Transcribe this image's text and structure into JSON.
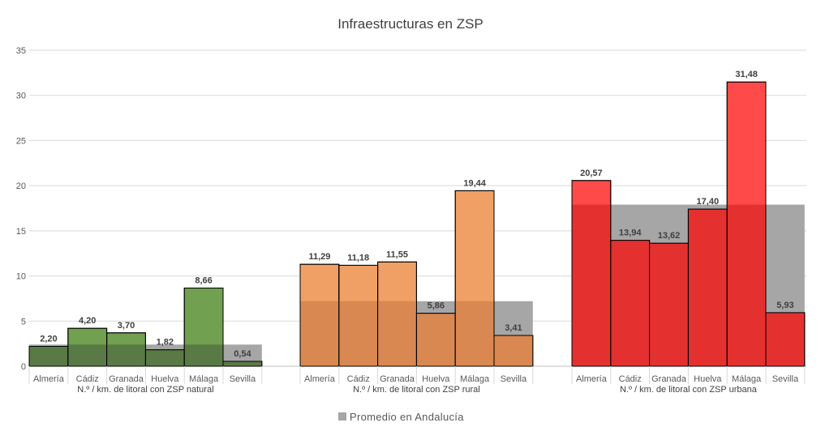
{
  "chart_data": {
    "type": "bar",
    "title": "Infraestructuras en ZSP",
    "ylim": [
      0,
      35
    ],
    "yticks": [
      0,
      5,
      10,
      15,
      20,
      25,
      30,
      35
    ],
    "grid": true,
    "legend_position": "bottom",
    "categories": [
      "Almería",
      "Cádiz",
      "Granada",
      "Huelva",
      "Málaga",
      "Sevilla"
    ],
    "groups": [
      {
        "name": "N.º / km. de litoral con ZSP natural",
        "values": [
          2.2,
          4.2,
          3.7,
          1.82,
          8.66,
          0.54
        ],
        "labels": [
          "2,20",
          "4,20",
          "3,70",
          "1,82",
          "8,66",
          "0,54"
        ],
        "average": 2.4,
        "color": "#70a050",
        "overlap_color": "#5a7a45"
      },
      {
        "name": "N.º / km. de litoral con ZSP rural",
        "values": [
          11.29,
          11.18,
          11.55,
          5.86,
          19.44,
          3.41
        ],
        "labels": [
          "11,29",
          "11,18",
          "11,55",
          "5,86",
          "19,44",
          "3,41"
        ],
        "average": 7.2,
        "color": "#f0a064",
        "overlap_color": "#d88850"
      },
      {
        "name": "N.º / km. de litoral con ZSP urbana",
        "values": [
          20.57,
          13.94,
          13.62,
          17.4,
          31.48,
          5.93
        ],
        "labels": [
          "20,57",
          "13,94",
          "13,62",
          "17,40",
          "31,48",
          "5,93"
        ],
        "average": 17.9,
        "color": "#ff4a4a",
        "overlap_color": "#e53030"
      }
    ],
    "average_series": {
      "name": "Promedio en Andalucía",
      "color": "#a6a6a6"
    }
  },
  "legend": {
    "label": "Promedio en Andalucía"
  }
}
